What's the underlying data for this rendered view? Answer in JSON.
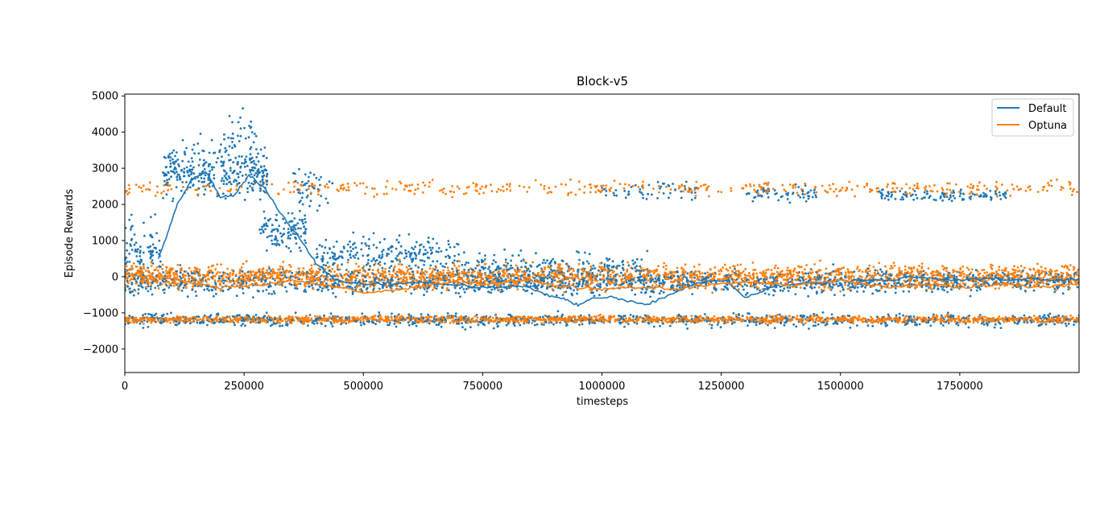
{
  "chart_data": {
    "type": "scatter",
    "title": "Block-v5",
    "xlabel": "timesteps",
    "ylabel": "Episode Rewards",
    "xlim": [
      0,
      2000000
    ],
    "ylim": [
      -2650,
      5050
    ],
    "xticks": [
      0,
      250000,
      500000,
      750000,
      1000000,
      1250000,
      1500000,
      1750000
    ],
    "xtick_labels": [
      "0",
      "250000",
      "500000",
      "750000",
      "1000000",
      "1250000",
      "1500000",
      "1750000"
    ],
    "yticks": [
      -2000,
      -1000,
      0,
      1000,
      2000,
      3000,
      4000,
      5000
    ],
    "ytick_labels": [
      "−2000",
      "−1000",
      "0",
      "1000",
      "2000",
      "3000",
      "4000",
      "5000"
    ],
    "grid": false,
    "legend_position": "top-right",
    "series": [
      {
        "name": "Default",
        "color": "#1f77b4",
        "smoothed": [
          [
            70000,
            500
          ],
          [
            90000,
            1200
          ],
          [
            110000,
            2000
          ],
          [
            140000,
            2700
          ],
          [
            170000,
            2900
          ],
          [
            200000,
            2200
          ],
          [
            230000,
            2250
          ],
          [
            260000,
            2800
          ],
          [
            290000,
            2500
          ],
          [
            330000,
            1700
          ],
          [
            370000,
            1000
          ],
          [
            400000,
            400
          ],
          [
            440000,
            -100
          ],
          [
            500000,
            -200
          ],
          [
            550000,
            -200
          ],
          [
            620000,
            -150
          ],
          [
            700000,
            -250
          ],
          [
            780000,
            -300
          ],
          [
            840000,
            -250
          ],
          [
            880000,
            -500
          ],
          [
            920000,
            -600
          ],
          [
            950000,
            -800
          ],
          [
            980000,
            -600
          ],
          [
            1020000,
            -550
          ],
          [
            1060000,
            -700
          ],
          [
            1100000,
            -750
          ],
          [
            1150000,
            -450
          ],
          [
            1200000,
            -150
          ],
          [
            1260000,
            -100
          ],
          [
            1300000,
            -600
          ],
          [
            1350000,
            -300
          ],
          [
            1400000,
            -200
          ],
          [
            1450000,
            -150
          ],
          [
            1500000,
            -100
          ],
          [
            1550000,
            -100
          ],
          [
            1600000,
            -100
          ],
          [
            1650000,
            0
          ],
          [
            1700000,
            -50
          ],
          [
            1750000,
            -100
          ],
          [
            1800000,
            -50
          ],
          [
            1850000,
            -100
          ],
          [
            1900000,
            -50
          ],
          [
            1950000,
            -100
          ],
          [
            2000000,
            -50
          ]
        ],
        "clusters": [
          {
            "x": [
              0,
              80000
            ],
            "y_mean": 700,
            "y_spread": 900,
            "count": 90
          },
          {
            "x": [
              80000,
              300000
            ],
            "y_mean": 2900,
            "y_spread": 700,
            "count": 320
          },
          {
            "x": [
              200000,
              280000
            ],
            "y_mean": 3800,
            "y_spread": 800,
            "count": 40
          },
          {
            "x": [
              280000,
              380000
            ],
            "y_mean": 1300,
            "y_spread": 500,
            "count": 110
          },
          {
            "x": [
              350000,
              440000
            ],
            "y_mean": 2500,
            "y_spread": 500,
            "count": 45
          },
          {
            "x": [
              400000,
              700000
            ],
            "y_mean": 600,
            "y_spread": 500,
            "count": 230
          },
          {
            "x": [
              700000,
              1100000
            ],
            "y_mean": 200,
            "y_spread": 450,
            "count": 260
          },
          {
            "x": [
              0,
              2000000
            ],
            "y_mean": -150,
            "y_spread": 320,
            "count": 1600
          },
          {
            "x": [
              0,
              2000000
            ],
            "y_mean": -1200,
            "y_spread": 180,
            "count": 900
          },
          {
            "x": [
              1000000,
              1200000
            ],
            "y_mean": 2400,
            "y_spread": 250,
            "count": 50
          },
          {
            "x": [
              1300000,
              1450000
            ],
            "y_mean": 2300,
            "y_spread": 250,
            "count": 60
          },
          {
            "x": [
              1580000,
              1850000
            ],
            "y_mean": 2250,
            "y_spread": 150,
            "count": 110
          }
        ]
      },
      {
        "name": "Optuna",
        "color": "#ff7f0e",
        "smoothed": [
          [
            0,
            50
          ],
          [
            50000,
            0
          ],
          [
            100000,
            -50
          ],
          [
            150000,
            -200
          ],
          [
            200000,
            -300
          ],
          [
            250000,
            -250
          ],
          [
            300000,
            -200
          ],
          [
            350000,
            -100
          ],
          [
            400000,
            -200
          ],
          [
            450000,
            -300
          ],
          [
            500000,
            -450
          ],
          [
            550000,
            -400
          ],
          [
            600000,
            -300
          ],
          [
            650000,
            -200
          ],
          [
            700000,
            -100
          ],
          [
            750000,
            -200
          ],
          [
            800000,
            -150
          ],
          [
            850000,
            -100
          ],
          [
            900000,
            -250
          ],
          [
            950000,
            -300
          ],
          [
            1000000,
            -350
          ],
          [
            1050000,
            -300
          ],
          [
            1100000,
            -300
          ],
          [
            1150000,
            -350
          ],
          [
            1200000,
            -250
          ],
          [
            1250000,
            -200
          ],
          [
            1300000,
            -150
          ],
          [
            1350000,
            -200
          ],
          [
            1400000,
            -250
          ],
          [
            1450000,
            -150
          ],
          [
            1500000,
            -100
          ],
          [
            1550000,
            -200
          ],
          [
            1600000,
            -300
          ],
          [
            1650000,
            -250
          ],
          [
            1700000,
            -200
          ],
          [
            1750000,
            -300
          ],
          [
            1800000,
            -250
          ],
          [
            1850000,
            -200
          ],
          [
            1900000,
            -300
          ],
          [
            1950000,
            -250
          ],
          [
            2000000,
            -200
          ]
        ],
        "clusters": [
          {
            "x": [
              0,
              2000000
            ],
            "y_mean": 2450,
            "y_spread": 200,
            "count": 430
          },
          {
            "x": [
              0,
              2000000
            ],
            "y_mean": 0,
            "y_spread": 320,
            "count": 2400
          },
          {
            "x": [
              0,
              2000000
            ],
            "y_mean": -1180,
            "y_spread": 90,
            "count": 1700
          }
        ]
      }
    ]
  }
}
